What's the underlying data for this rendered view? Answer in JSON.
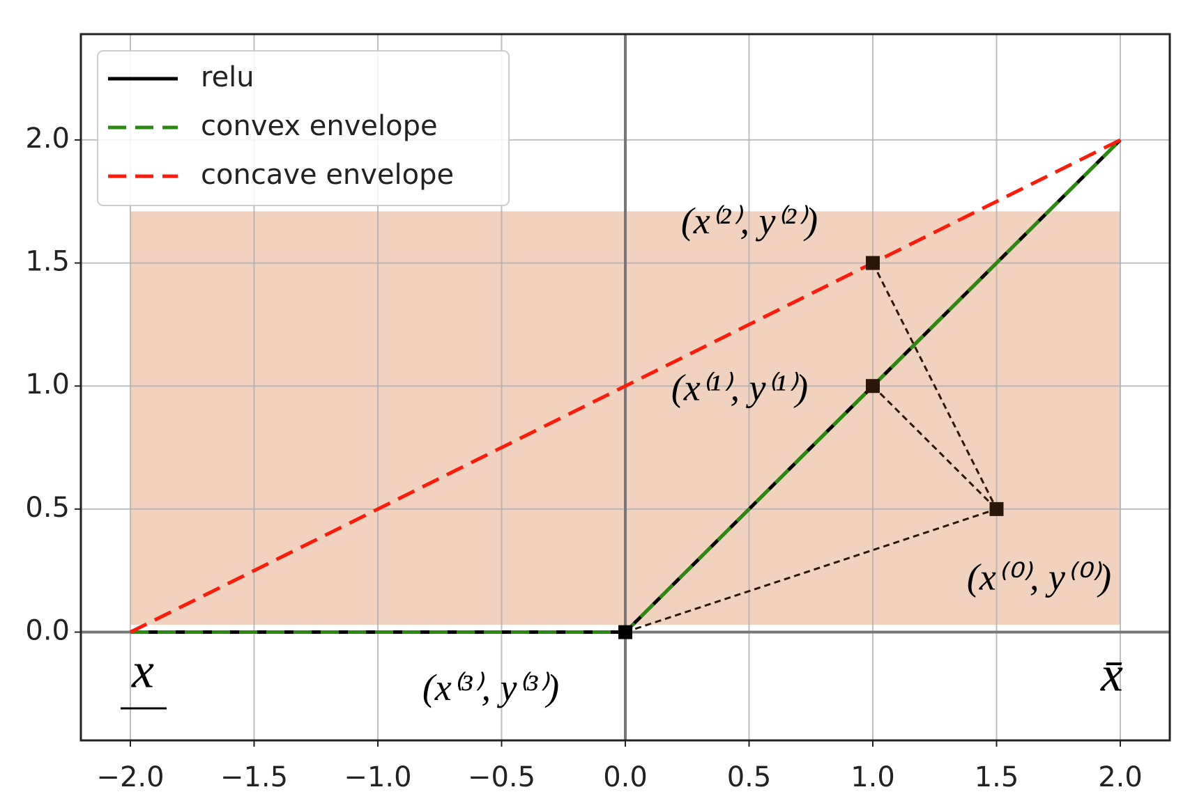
{
  "chart_data": {
    "type": "line",
    "xlim": [
      -2.2,
      2.2
    ],
    "ylim": [
      -0.44,
      2.43
    ],
    "xticks": [
      {
        "value": -2,
        "label": "−2.0"
      },
      {
        "value": -1.5,
        "label": "−1.5"
      },
      {
        "value": -1,
        "label": "−1.0"
      },
      {
        "value": -0.5,
        "label": "−0.5"
      },
      {
        "value": 0,
        "label": "0.0"
      },
      0.5,
      {
        "value": 1,
        "label": "1.0"
      },
      1.5,
      {
        "value": 2,
        "label": "2.0"
      }
    ],
    "yticks": [
      {
        "value": 0,
        "label": "0.0"
      },
      0.5,
      {
        "value": 1,
        "label": "1.0"
      },
      1.5,
      {
        "value": 2,
        "label": "2.0"
      }
    ],
    "grid": true,
    "legend": "upper left",
    "shaded_region": {
      "x": [
        -2,
        2
      ],
      "y": [
        0.03,
        1.71
      ],
      "color": "#f0d2bf"
    },
    "series": [
      {
        "name": "relu",
        "color": "#000000",
        "dash": false,
        "x": [
          -2,
          0,
          2
        ],
        "values": [
          0,
          0,
          2
        ]
      },
      {
        "name": "convex envelope",
        "color": "#2a8a10",
        "dash": true,
        "x": [
          -2,
          0,
          2
        ],
        "values": [
          0,
          0,
          2
        ]
      },
      {
        "name": "concave envelope",
        "color": "#ff1a0a",
        "dash": true,
        "x": [
          -2,
          2
        ],
        "values": [
          0,
          2
        ]
      }
    ],
    "points": {
      "color": "#2b1608",
      "x": [
        1.5,
        1,
        1,
        0
      ],
      "values": [
        0.5,
        1,
        1.5,
        0
      ],
      "labels": [
        "(x⁽⁰⁾, y⁽⁰⁾)",
        "(x⁽¹⁾, y⁽¹⁾)",
        "(x⁽²⁾, y⁽²⁾)",
        "(x⁽³⁾, y⁽³⁾)"
      ]
    },
    "annotations": [
      "x",
      "x̄"
    ]
  }
}
